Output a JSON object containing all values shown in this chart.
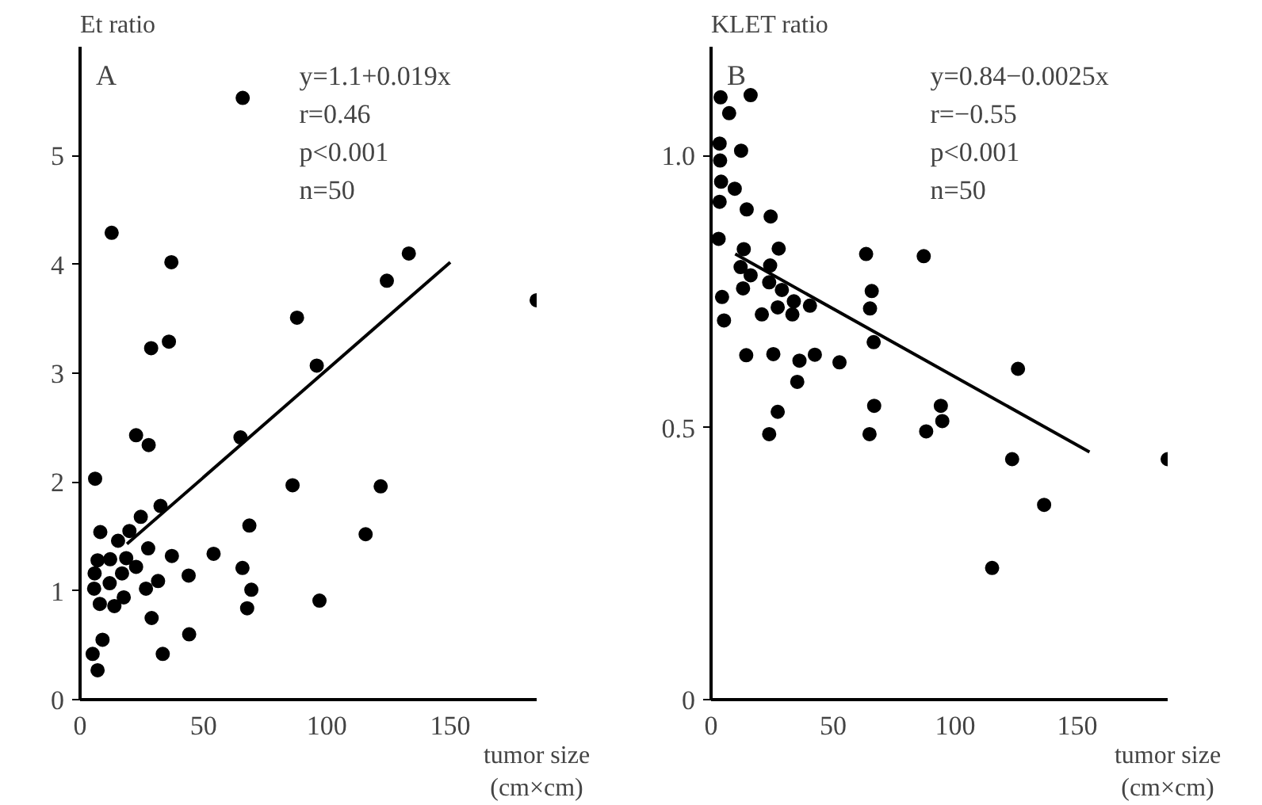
{
  "chart_data": [
    {
      "type": "scatter",
      "ylabel": "Et ratio",
      "xlabel": "tumor size\n(cm×cm)",
      "annotations": [
        "A",
        "y=1.1+0.019x",
        "r=0.46",
        "p<0.001",
        "n=50"
      ],
      "xlim": [
        0,
        185
      ],
      "ylim": [
        0,
        6
      ],
      "xticks": [
        0,
        50,
        100,
        150
      ],
      "yticks": [
        0,
        1,
        2,
        3,
        4,
        5
      ],
      "grid": false,
      "series": [
        {
          "marker": "circle",
          "color": "#000000",
          "x": [
            65.9,
            12.8,
            37.0,
            133.2,
            124.3,
            185,
            87.9,
            28.8,
            36.0,
            95.9,
            22.7,
            27.8,
            65.0,
            6.1,
            86.1,
            121.8,
            32.6,
            24.6,
            8.2,
            20.0,
            15.4,
            68.6,
            115.7,
            27.6,
            7.1,
            12.2,
            18.7,
            37.2,
            54.1,
            22.7,
            65.8,
            5.9,
            17.0,
            44.0,
            12.0,
            31.6,
            5.7,
            26.7,
            69.4,
            17.7,
            8.0,
            13.9,
            67.7,
            97.0,
            29.0,
            9.1,
            44.2,
            5.1,
            33.5,
            7.1
          ],
          "values": [
            5.53,
            4.29,
            4.02,
            4.1,
            3.85,
            3.67,
            3.51,
            3.23,
            3.29,
            3.07,
            2.43,
            2.34,
            2.41,
            2.03,
            1.97,
            1.96,
            1.78,
            1.68,
            1.54,
            1.55,
            1.46,
            1.6,
            1.52,
            1.39,
            1.28,
            1.29,
            1.3,
            1.32,
            1.34,
            1.22,
            1.21,
            1.16,
            1.16,
            1.14,
            1.07,
            1.09,
            1.02,
            1.02,
            1.01,
            0.94,
            0.88,
            0.86,
            0.84,
            0.91,
            0.75,
            0.55,
            0.6,
            0.42,
            0.42,
            0.27
          ]
        },
        {
          "type": "line",
          "color": "#000000",
          "x": [
            19,
            150
          ],
          "values": [
            1.43,
            4.02
          ]
        }
      ]
    },
    {
      "type": "scatter",
      "ylabel": "KLET ratio",
      "xlabel": "tumor size\n(cm×cm)",
      "annotations": [
        "B",
        "y=0.84−0.0025x",
        "r=−0.55",
        "p<0.001",
        "n=50"
      ],
      "xlim": [
        0,
        187
      ],
      "ylim": [
        0,
        1.2
      ],
      "xticks": [
        0,
        50,
        100,
        150
      ],
      "yticks": [
        0,
        0.5,
        {
          "value": 1,
          "label": "1.0"
        }
      ],
      "grid": false,
      "series": [
        {
          "marker": "circle",
          "color": "#000000",
          "x": [
            3.9,
            16.2,
            7.4,
            3.5,
            12.3,
            3.7,
            4.1,
            9.7,
            3.5,
            14.6,
            24.4,
            3.1,
            13.4,
            27.7,
            63.5,
            87.1,
            12.1,
            24.2,
            16.2,
            23.8,
            13.1,
            29.0,
            65.8,
            4.5,
            33.9,
            40.5,
            27.3,
            65.1,
            20.8,
            33.3,
            5.3,
            66.6,
            14.4,
            25.5,
            42.5,
            36.2,
            52.6,
            125.7,
            35.3,
            27.3,
            66.8,
            94.1,
            94.7,
            23.8,
            64.9,
            88.1,
            123.3,
            187,
            136.4,
            115.1
          ],
          "values": [
            1.107,
            1.111,
            1.078,
            1.022,
            1.009,
            0.991,
            0.952,
            0.939,
            0.915,
            0.901,
            0.888,
            0.847,
            0.828,
            0.829,
            0.819,
            0.815,
            0.795,
            0.798,
            0.78,
            0.767,
            0.756,
            0.753,
            0.751,
            0.74,
            0.732,
            0.724,
            0.721,
            0.719,
            0.708,
            0.708,
            0.697,
            0.657,
            0.633,
            0.635,
            0.634,
            0.623,
            0.62,
            0.608,
            0.584,
            0.529,
            0.54,
            0.54,
            0.512,
            0.488,
            0.488,
            0.493,
            0.442,
            0.442,
            0.358,
            0.242
          ]
        },
        {
          "type": "line",
          "color": "#000000",
          "x": [
            9.9,
            155
          ],
          "values": [
            0.819,
            0.455
          ]
        }
      ]
    }
  ]
}
